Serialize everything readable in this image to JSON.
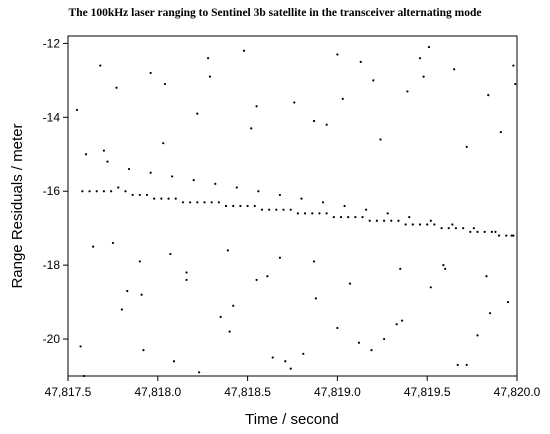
{
  "chart_data": {
    "type": "scatter",
    "title": "The 100kHz laser ranging to Sentinel 3b satellite in the transceiver alternating mode",
    "xlabel": "Time / second",
    "ylabel": "Range Residuals / meter",
    "xlim": [
      47817.5,
      47820.0
    ],
    "ylim": [
      -21,
      -11.8
    ],
    "xticks": [
      47817.5,
      47818.0,
      47818.5,
      47819.0,
      47819.5,
      47820.0
    ],
    "xtick_labels": [
      "47,817.5",
      "47,818.0",
      "47,818.5",
      "47,819.0",
      "47,819.5",
      "47,820.0"
    ],
    "yticks": [
      -20,
      -18,
      -16,
      -14,
      -12
    ],
    "ytick_labels": [
      "-20",
      "-18",
      "-16",
      "-14",
      "-12"
    ],
    "grid": false,
    "series": [
      {
        "color": "#000000",
        "x": [
          47817.58,
          47817.62,
          47817.66,
          47817.7,
          47817.74,
          47817.78,
          47817.82,
          47817.86,
          47817.9,
          47817.94,
          47817.98,
          47818.02,
          47818.06,
          47818.1,
          47818.14,
          47818.18,
          47818.22,
          47818.26,
          47818.3,
          47818.34,
          47818.38,
          47818.42,
          47818.46,
          47818.5,
          47818.54,
          47818.58,
          47818.62,
          47818.66,
          47818.7,
          47818.74,
          47818.78,
          47818.82,
          47818.86,
          47818.9,
          47818.94,
          47818.98,
          47819.02,
          47819.06,
          47819.1,
          47819.14,
          47819.18,
          47819.22,
          47819.26,
          47819.3,
          47819.34,
          47819.38,
          47819.42,
          47819.46,
          47819.5,
          47819.54,
          47819.58,
          47819.62,
          47819.66,
          47819.7,
          47819.74,
          47819.78,
          47819.82,
          47819.86,
          47819.9,
          47819.94,
          47819.98,
          47817.6,
          47817.72,
          47817.84,
          47817.96,
          47818.08,
          47818.2,
          47818.32,
          47818.44,
          47818.56,
          47818.68,
          47818.8,
          47818.92,
          47819.04,
          47819.16,
          47819.28,
          47819.4,
          47819.52,
          47819.64,
          47819.76,
          47819.88,
          47819.97,
          47817.55,
          47817.68,
          47817.8,
          47817.92,
          47818.04,
          47818.16,
          47818.28,
          47818.4,
          47818.52,
          47818.64,
          47818.76,
          47818.88,
          47819.0,
          47819.12,
          47819.24,
          47819.36,
          47819.48,
          47819.6,
          47819.72,
          47819.84,
          47819.95,
          47817.57,
          47817.7,
          47817.83,
          47817.96,
          47818.09,
          47818.22,
          47818.35,
          47818.48,
          47818.61,
          47818.74,
          47818.87,
          47819.0,
          47819.13,
          47819.26,
          47819.39,
          47819.52,
          47819.65,
          47819.78,
          47819.91,
          47817.64,
          47817.77,
          47817.9,
          47818.03,
          47818.16,
          47818.29,
          47818.42,
          47818.55,
          47818.68,
          47818.81,
          47818.94,
          47819.07,
          47819.2,
          47819.33,
          47819.46,
          47819.59,
          47819.72,
          47819.85,
          47819.98,
          47817.59,
          47817.75,
          47817.91,
          47818.07,
          47818.23,
          47818.39,
          47818.55,
          47818.71,
          47818.87,
          47819.03,
          47819.19,
          47819.35,
          47819.51,
          47819.67,
          47819.83,
          47819.99
        ],
        "y": [
          -16.0,
          -16.0,
          -16.0,
          -16.0,
          -16.0,
          -15.9,
          -16.0,
          -16.1,
          -16.1,
          -16.1,
          -16.2,
          -16.2,
          -16.2,
          -16.2,
          -16.3,
          -16.3,
          -16.3,
          -16.3,
          -16.3,
          -16.3,
          -16.4,
          -16.4,
          -16.4,
          -16.4,
          -16.4,
          -16.5,
          -16.5,
          -16.5,
          -16.5,
          -16.5,
          -16.6,
          -16.6,
          -16.6,
          -16.6,
          -16.6,
          -16.7,
          -16.7,
          -16.7,
          -16.7,
          -16.7,
          -16.8,
          -16.8,
          -16.8,
          -16.8,
          -16.8,
          -16.9,
          -16.9,
          -16.9,
          -16.9,
          -16.9,
          -17.0,
          -17.0,
          -17.0,
          -17.0,
          -17.1,
          -17.1,
          -17.1,
          -17.1,
          -17.2,
          -17.2,
          -17.2,
          -15.0,
          -15.2,
          -15.4,
          -15.5,
          -15.6,
          -15.7,
          -15.8,
          -15.9,
          -16.0,
          -16.1,
          -16.2,
          -16.3,
          -16.4,
          -16.5,
          -16.6,
          -16.7,
          -16.8,
          -16.9,
          -17.0,
          -17.1,
          -17.2,
          -13.8,
          -12.6,
          -19.2,
          -20.3,
          -13.1,
          -18.4,
          -12.4,
          -19.8,
          -14.3,
          -20.5,
          -13.6,
          -18.9,
          -12.3,
          -20.1,
          -14.6,
          -19.5,
          -12.9,
          -18.1,
          -20.7,
          -13.4,
          -19.0,
          -20.2,
          -14.9,
          -18.7,
          -12.8,
          -20.6,
          -13.9,
          -19.4,
          -12.2,
          -18.3,
          -20.8,
          -14.1,
          -19.7,
          -12.5,
          -20.0,
          -13.3,
          -18.6,
          -12.7,
          -19.9,
          -14.4,
          -17.5,
          -13.2,
          -17.9,
          -14.7,
          -18.2,
          -12.9,
          -19.1,
          -13.7,
          -17.8,
          -20.4,
          -14.2,
          -18.5,
          -13.0,
          -19.6,
          -12.4,
          -18.0,
          -14.8,
          -19.3,
          -12.6,
          -21.0,
          -17.4,
          -18.8,
          -17.7,
          -20.9,
          -17.6,
          -18.4,
          -20.6,
          -17.9,
          -13.5,
          -20.3,
          -18.1,
          -12.1,
          -20.7,
          -18.3,
          -13.1
        ]
      }
    ]
  }
}
